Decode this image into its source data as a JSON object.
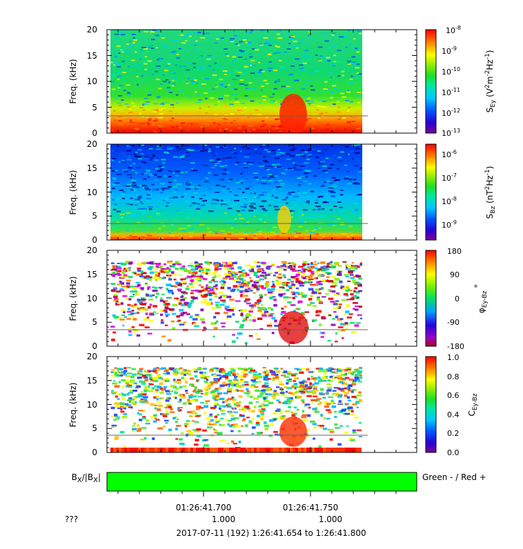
{
  "chart_data": [
    {
      "type": "heatmap",
      "ylabel": "Freq. (kHz)",
      "yticks": [
        "0",
        "5",
        "10",
        "15",
        "20"
      ],
      "ylim": [
        0,
        20
      ],
      "colorbar": {
        "label": "S_Ey (V^2m^-2Hz^-1)",
        "scale": "log",
        "range": [
          1e-13,
          1e-08
        ],
        "tick_labels": [
          "10^-8",
          "10^-9",
          "10^-10",
          "10^-11",
          "10^-12",
          "10^-13"
        ]
      }
    },
    {
      "type": "heatmap",
      "ylabel": "Freq. (kHz)",
      "yticks": [
        "0",
        "5",
        "10",
        "15",
        "20"
      ],
      "ylim": [
        0,
        20
      ],
      "colorbar": {
        "label": "S_Bz (nT^2Hz^-1)",
        "scale": "log",
        "range": [
          3e-10,
          3e-06
        ],
        "tick_labels": [
          "10^-6",
          "10^-7",
          "10^-8",
          "10^-9"
        ]
      }
    },
    {
      "type": "heatmap",
      "ylabel": "Freq. (kHz)",
      "yticks": [
        "0",
        "5",
        "10",
        "15",
        "20"
      ],
      "ylim": [
        0,
        20
      ],
      "colorbar": {
        "label": "φ_Ey-Bz °",
        "scale": "linear",
        "range": [
          -180,
          180
        ],
        "tick_labels": [
          "180",
          "90",
          "0",
          "-90",
          "-180"
        ]
      }
    },
    {
      "type": "heatmap",
      "ylabel": "Freq. (kHz)",
      "yticks": [
        "0",
        "5",
        "10",
        "15",
        "20"
      ],
      "ylim": [
        0,
        20
      ],
      "colorbar": {
        "label": "C_Ey-Bz",
        "scale": "linear",
        "range": [
          0,
          1
        ],
        "tick_labels": [
          "1.0",
          "0.8",
          "0.6",
          "0.4",
          "0.2",
          "0.0"
        ]
      }
    }
  ],
  "bx_bar": {
    "label": "B_X/|B_X|",
    "legend": "Green - / Red +",
    "colors": [
      "#00ff00",
      "#ff0000"
    ]
  },
  "x_axis": {
    "tick_times": [
      "01:26:41.700",
      "01:26:41.750"
    ],
    "tick_values": [
      "1.000",
      "1.000"
    ],
    "row_label": "???",
    "range_label": "2017-07-11 (192) 1:26:41.654 to 1:26:41.800"
  }
}
